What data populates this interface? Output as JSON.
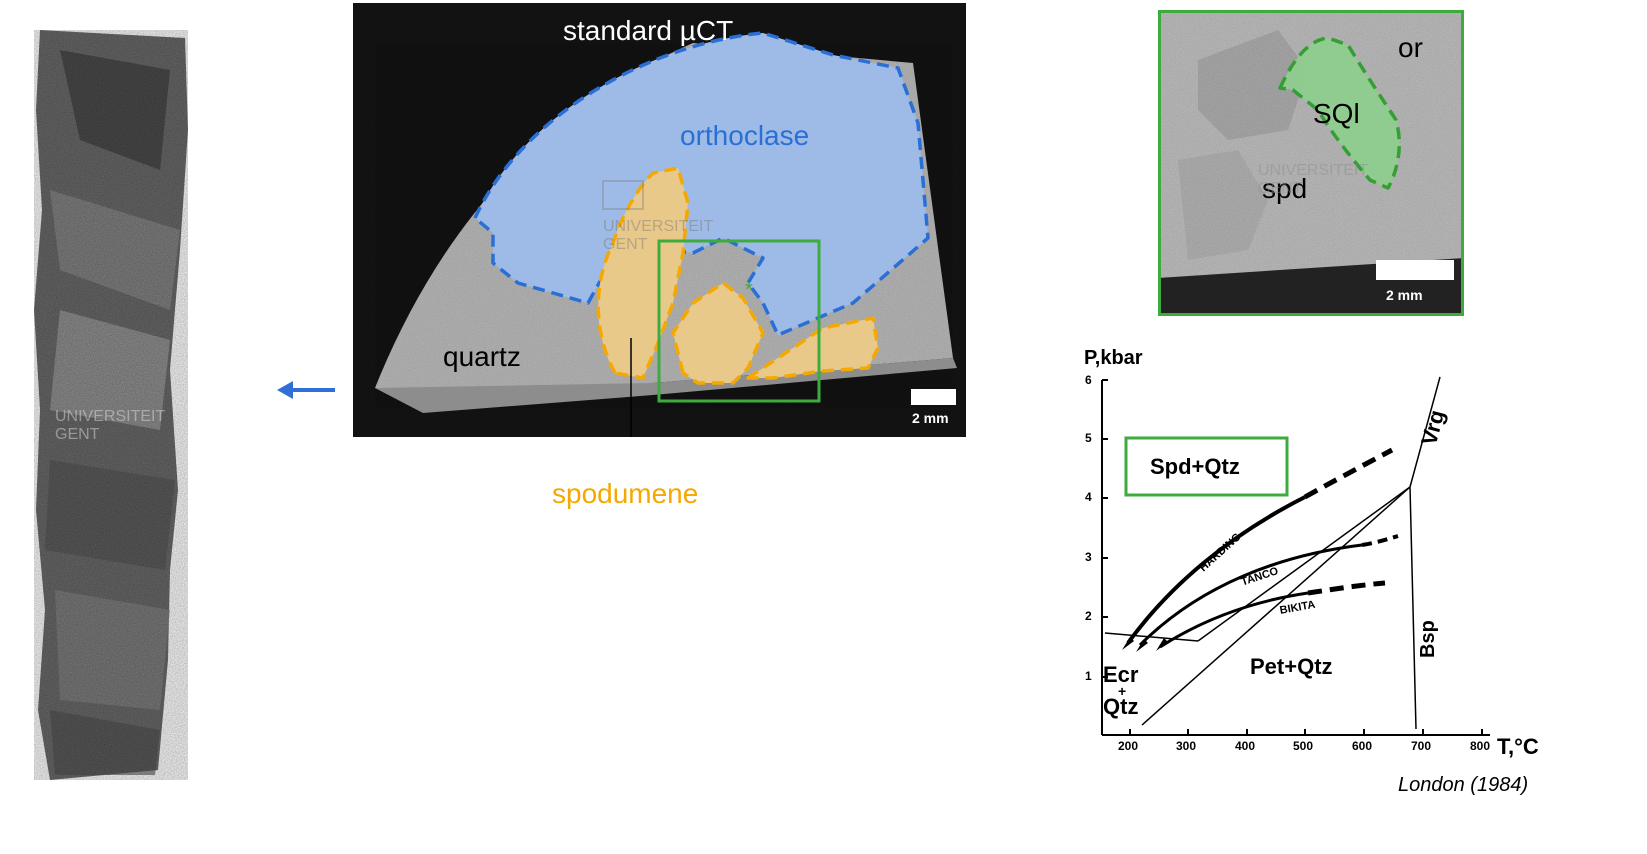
{
  "ct_panel": {
    "title": "standard  µCT",
    "labels": {
      "orthoclase": "orthoclase",
      "quartz": "quartz",
      "spodumene": "spodumene",
      "asterisk": "*"
    },
    "scale_bar": "2 mm",
    "colors": {
      "orthoclase": "#4a7fd6",
      "orthoclase_fill": "#9dbbe6",
      "spodumene": "#f5a800",
      "spodumene_fill": "#e9c98a",
      "highlight_box": "#3dab3d"
    }
  },
  "watermark": {
    "line1": "UNIVERSITEIT",
    "line2": "GENT"
  },
  "zoom_panel": {
    "labels": {
      "or": "or",
      "sql": "SQl",
      "spd": "spd"
    },
    "scale_bar": "2 mm",
    "colors": {
      "border": "#3dab3d",
      "sql_fill": "#8fce8f",
      "sql_line": "#2f9e2f"
    }
  },
  "arrows": {
    "core_arrow_color": "#2f6fd6"
  },
  "phase_diagram": {
    "y_axis_label": "P,kbar",
    "x_axis_label": "T,°C",
    "y_ticks": [
      "1",
      "2",
      "3",
      "4",
      "5",
      "6"
    ],
    "x_ticks": [
      "200",
      "300",
      "400",
      "500",
      "600",
      "700",
      "800"
    ],
    "fields": {
      "spd_qtz": "Spd+Qtz",
      "pet_qtz": "Pet+Qtz",
      "ecr": "Ecr",
      "ecr_plus": "+",
      "ecr_qtz": "Qtz",
      "vrg": "Vrg",
      "bsp": "Bsp"
    },
    "curves": {
      "harding": "HARDING",
      "tanco": "TANCO",
      "bikita": "BIKITA"
    },
    "credit": "London (1984)"
  }
}
